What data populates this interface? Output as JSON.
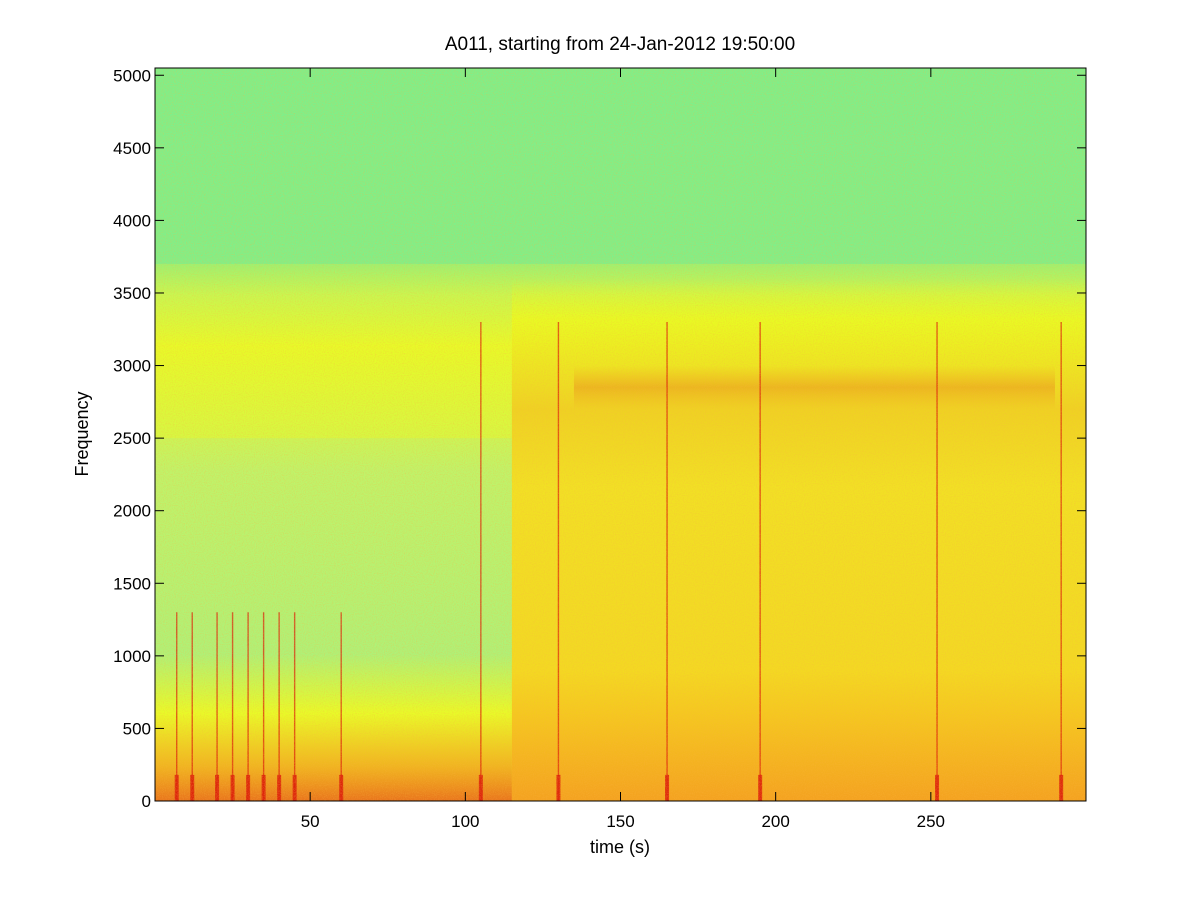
{
  "chart_data": {
    "type": "heatmap",
    "title": "A011, starting from 24-Jan-2012 19:50:00",
    "xlabel": "time (s)",
    "ylabel": "Frequency",
    "xlim": [
      0,
      300
    ],
    "ylim": [
      0,
      5050
    ],
    "x_ticks": [
      50,
      100,
      150,
      200,
      250
    ],
    "y_ticks": [
      0,
      500,
      1000,
      1500,
      2000,
      2500,
      3000,
      3500,
      4000,
      4500,
      5000
    ],
    "grid": false,
    "colormap": "jet",
    "colors": {
      "background": "#7ef08a",
      "mid": "#ecfb1e",
      "high": "#f5a020",
      "peak": "#dc1e0a"
    },
    "regions": [
      {
        "t": [
          0,
          115
        ],
        "f": [
          0,
          600
        ],
        "level": "mid-high"
      },
      {
        "t": [
          0,
          115
        ],
        "f": [
          2500,
          3100
        ],
        "level": "mid"
      },
      {
        "t": [
          115,
          300
        ],
        "f": [
          0,
          3600
        ],
        "level": "mid-high"
      },
      {
        "t": [
          135,
          290
        ],
        "f": [
          2700,
          3000
        ],
        "level": "high"
      },
      {
        "t": [
          0,
          300
        ],
        "f": [
          3700,
          5050
        ],
        "level": "background"
      }
    ],
    "transients_s": [
      7,
      12,
      20,
      25,
      30,
      35,
      40,
      45,
      60,
      105,
      130,
      165,
      195,
      252,
      292
    ]
  }
}
